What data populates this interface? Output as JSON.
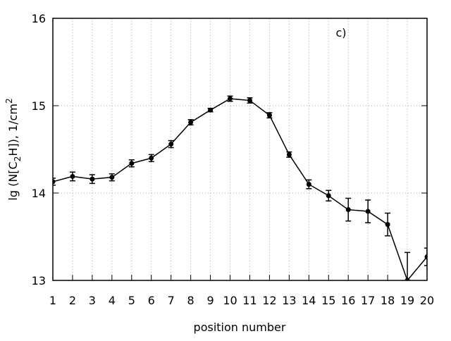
{
  "chart_data": {
    "type": "line",
    "annotation": "c)",
    "xlabel": "position number",
    "ylabel": [
      "lg (N[C",
      "2",
      "H]), 1/cm",
      "2"
    ],
    "x": [
      1,
      2,
      3,
      4,
      5,
      6,
      7,
      8,
      9,
      10,
      11,
      12,
      13,
      14,
      15,
      16,
      17,
      18,
      19,
      20
    ],
    "series": [
      {
        "color": "#000000",
        "values": [
          14.13,
          14.19,
          14.16,
          14.18,
          14.34,
          14.4,
          14.56,
          14.81,
          14.95,
          15.08,
          15.06,
          14.89,
          14.44,
          14.1,
          13.97,
          13.81,
          13.79,
          13.64,
          13.0,
          13.27
        ],
        "yerr": [
          0.04,
          0.05,
          0.05,
          0.04,
          0.04,
          0.04,
          0.04,
          0.03,
          0.02,
          0.03,
          0.03,
          0.03,
          0.03,
          0.05,
          0.06,
          0.13,
          0.13,
          0.13,
          0.32,
          0.1
        ]
      }
    ],
    "xlim": [
      1,
      20
    ],
    "xticks": [
      1,
      2,
      3,
      4,
      5,
      6,
      7,
      8,
      9,
      10,
      11,
      12,
      13,
      14,
      15,
      16,
      17,
      18,
      19,
      20
    ],
    "ylim": [
      13,
      16
    ],
    "yticks": [
      13,
      14,
      15,
      16
    ],
    "grid": true
  }
}
